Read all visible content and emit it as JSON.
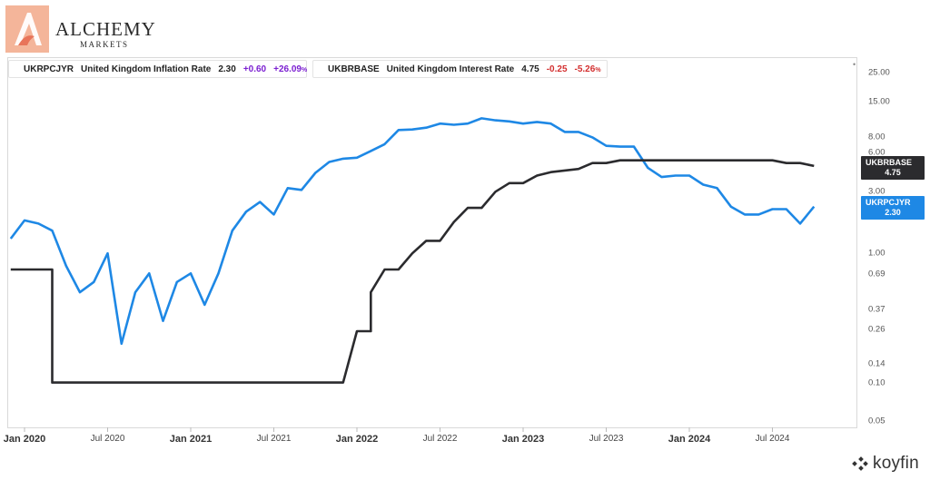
{
  "brand": {
    "logo_name": "ALCHEMY",
    "logo_sub": "MARKETS",
    "watermark": "koyfin",
    "colors": {
      "logo_peach": "#f4b59a",
      "logo_coral": "#e8745a"
    }
  },
  "legend": [
    {
      "ticker": "UKRPCJYR",
      "description": "United Kingdom Inflation Rate",
      "value": "2.30",
      "change": "+0.60",
      "change_pct": "+26.09",
      "pct_sign": "%",
      "color": "#1e88e5"
    },
    {
      "ticker": "UKBRBASE",
      "description": "United Kingdom Interest Rate",
      "value": "4.75",
      "change": "-0.25",
      "change_pct": "-5.26",
      "pct_sign": "%",
      "color": "#2b2b2e"
    }
  ],
  "menu_icon": "dots-icon",
  "chart_data": {
    "type": "line",
    "y_scale": "log",
    "ylim": [
      0.045,
      33
    ],
    "y_ticks": [
      "25.00",
      "15.00",
      "8.00",
      "6.00",
      "3.00",
      "1.00",
      "0.69",
      "0.37",
      "0.26",
      "0.14",
      "0.10",
      "0.05"
    ],
    "x_ticks": [
      {
        "label": "Jan 2020",
        "date": "2020-01",
        "major": true
      },
      {
        "label": "Jul 2020",
        "date": "2020-07",
        "major": false
      },
      {
        "label": "Jan 2021",
        "date": "2021-01",
        "major": true
      },
      {
        "label": "Jul 2021",
        "date": "2021-07",
        "major": false
      },
      {
        "label": "Jan 2022",
        "date": "2022-01",
        "major": true
      },
      {
        "label": "Jul 2022",
        "date": "2022-07",
        "major": false
      },
      {
        "label": "Jan 2023",
        "date": "2023-01",
        "major": true
      },
      {
        "label": "Jul 2023",
        "date": "2023-07",
        "major": false
      },
      {
        "label": "Jan 2024",
        "date": "2024-01",
        "major": true
      },
      {
        "label": "Jul 2024",
        "date": "2024-07",
        "major": false
      }
    ],
    "series": [
      {
        "name": "UKRPCJYR",
        "color": "#1e88e5",
        "end_label": "UKRPCJYR",
        "end_value": "2.30",
        "points": [
          [
            "2019-12",
            1.3
          ],
          [
            "2020-01",
            1.8
          ],
          [
            "2020-02",
            1.7
          ],
          [
            "2020-03",
            1.5
          ],
          [
            "2020-04",
            0.8
          ],
          [
            "2020-05",
            0.5
          ],
          [
            "2020-06",
            0.6
          ],
          [
            "2020-07",
            1.0
          ],
          [
            "2020-08",
            0.2
          ],
          [
            "2020-09",
            0.5
          ],
          [
            "2020-10",
            0.7
          ],
          [
            "2020-11",
            0.3
          ],
          [
            "2020-12",
            0.6
          ],
          [
            "2021-01",
            0.7
          ],
          [
            "2021-02",
            0.4
          ],
          [
            "2021-03",
            0.7
          ],
          [
            "2021-04",
            1.5
          ],
          [
            "2021-05",
            2.1
          ],
          [
            "2021-06",
            2.5
          ],
          [
            "2021-07",
            2.0
          ],
          [
            "2021-08",
            3.2
          ],
          [
            "2021-09",
            3.1
          ],
          [
            "2021-10",
            4.2
          ],
          [
            "2021-11",
            5.1
          ],
          [
            "2021-12",
            5.4
          ],
          [
            "2022-01",
            5.5
          ],
          [
            "2022-02",
            6.2
          ],
          [
            "2022-03",
            7.0
          ],
          [
            "2022-04",
            9.0
          ],
          [
            "2022-05",
            9.1
          ],
          [
            "2022-06",
            9.4
          ],
          [
            "2022-07",
            10.1
          ],
          [
            "2022-08",
            9.9
          ],
          [
            "2022-09",
            10.1
          ],
          [
            "2022-10",
            11.1
          ],
          [
            "2022-11",
            10.7
          ],
          [
            "2022-12",
            10.5
          ],
          [
            "2023-01",
            10.1
          ],
          [
            "2023-02",
            10.4
          ],
          [
            "2023-03",
            10.1
          ],
          [
            "2023-04",
            8.7
          ],
          [
            "2023-05",
            8.7
          ],
          [
            "2023-06",
            7.9
          ],
          [
            "2023-07",
            6.8
          ],
          [
            "2023-08",
            6.7
          ],
          [
            "2023-09",
            6.7
          ],
          [
            "2023-10",
            4.6
          ],
          [
            "2023-11",
            3.9
          ],
          [
            "2023-12",
            4.0
          ],
          [
            "2024-01",
            4.0
          ],
          [
            "2024-02",
            3.4
          ],
          [
            "2024-03",
            3.2
          ],
          [
            "2024-04",
            2.3
          ],
          [
            "2024-05",
            2.0
          ],
          [
            "2024-06",
            2.0
          ],
          [
            "2024-07",
            2.2
          ],
          [
            "2024-08",
            2.2
          ],
          [
            "2024-09",
            1.7
          ],
          [
            "2024-10",
            2.3
          ]
        ]
      },
      {
        "name": "UKBRBASE",
        "color": "#2b2b2e",
        "end_label": "UKBRBASE",
        "end_value": "4.75",
        "points": [
          [
            "2019-12",
            0.75
          ],
          [
            "2020-03",
            0.75
          ],
          [
            "2020-03",
            0.1
          ],
          [
            "2021-12",
            0.1
          ],
          [
            "2022-01",
            0.25
          ],
          [
            "2022-02",
            0.25
          ],
          [
            "2022-02",
            0.5
          ],
          [
            "2022-03",
            0.75
          ],
          [
            "2022-04",
            0.75
          ],
          [
            "2022-05",
            1.0
          ],
          [
            "2022-06",
            1.25
          ],
          [
            "2022-07",
            1.25
          ],
          [
            "2022-08",
            1.75
          ],
          [
            "2022-09",
            2.25
          ],
          [
            "2022-10",
            2.25
          ],
          [
            "2022-11",
            3.0
          ],
          [
            "2022-12",
            3.5
          ],
          [
            "2023-01",
            3.5
          ],
          [
            "2023-02",
            4.0
          ],
          [
            "2023-03",
            4.25
          ],
          [
            "2023-05",
            4.5
          ],
          [
            "2023-06",
            5.0
          ],
          [
            "2023-07",
            5.0
          ],
          [
            "2023-08",
            5.25
          ],
          [
            "2024-07",
            5.25
          ],
          [
            "2024-08",
            5.0
          ],
          [
            "2024-09",
            5.0
          ],
          [
            "2024-10",
            4.75
          ]
        ]
      }
    ]
  }
}
